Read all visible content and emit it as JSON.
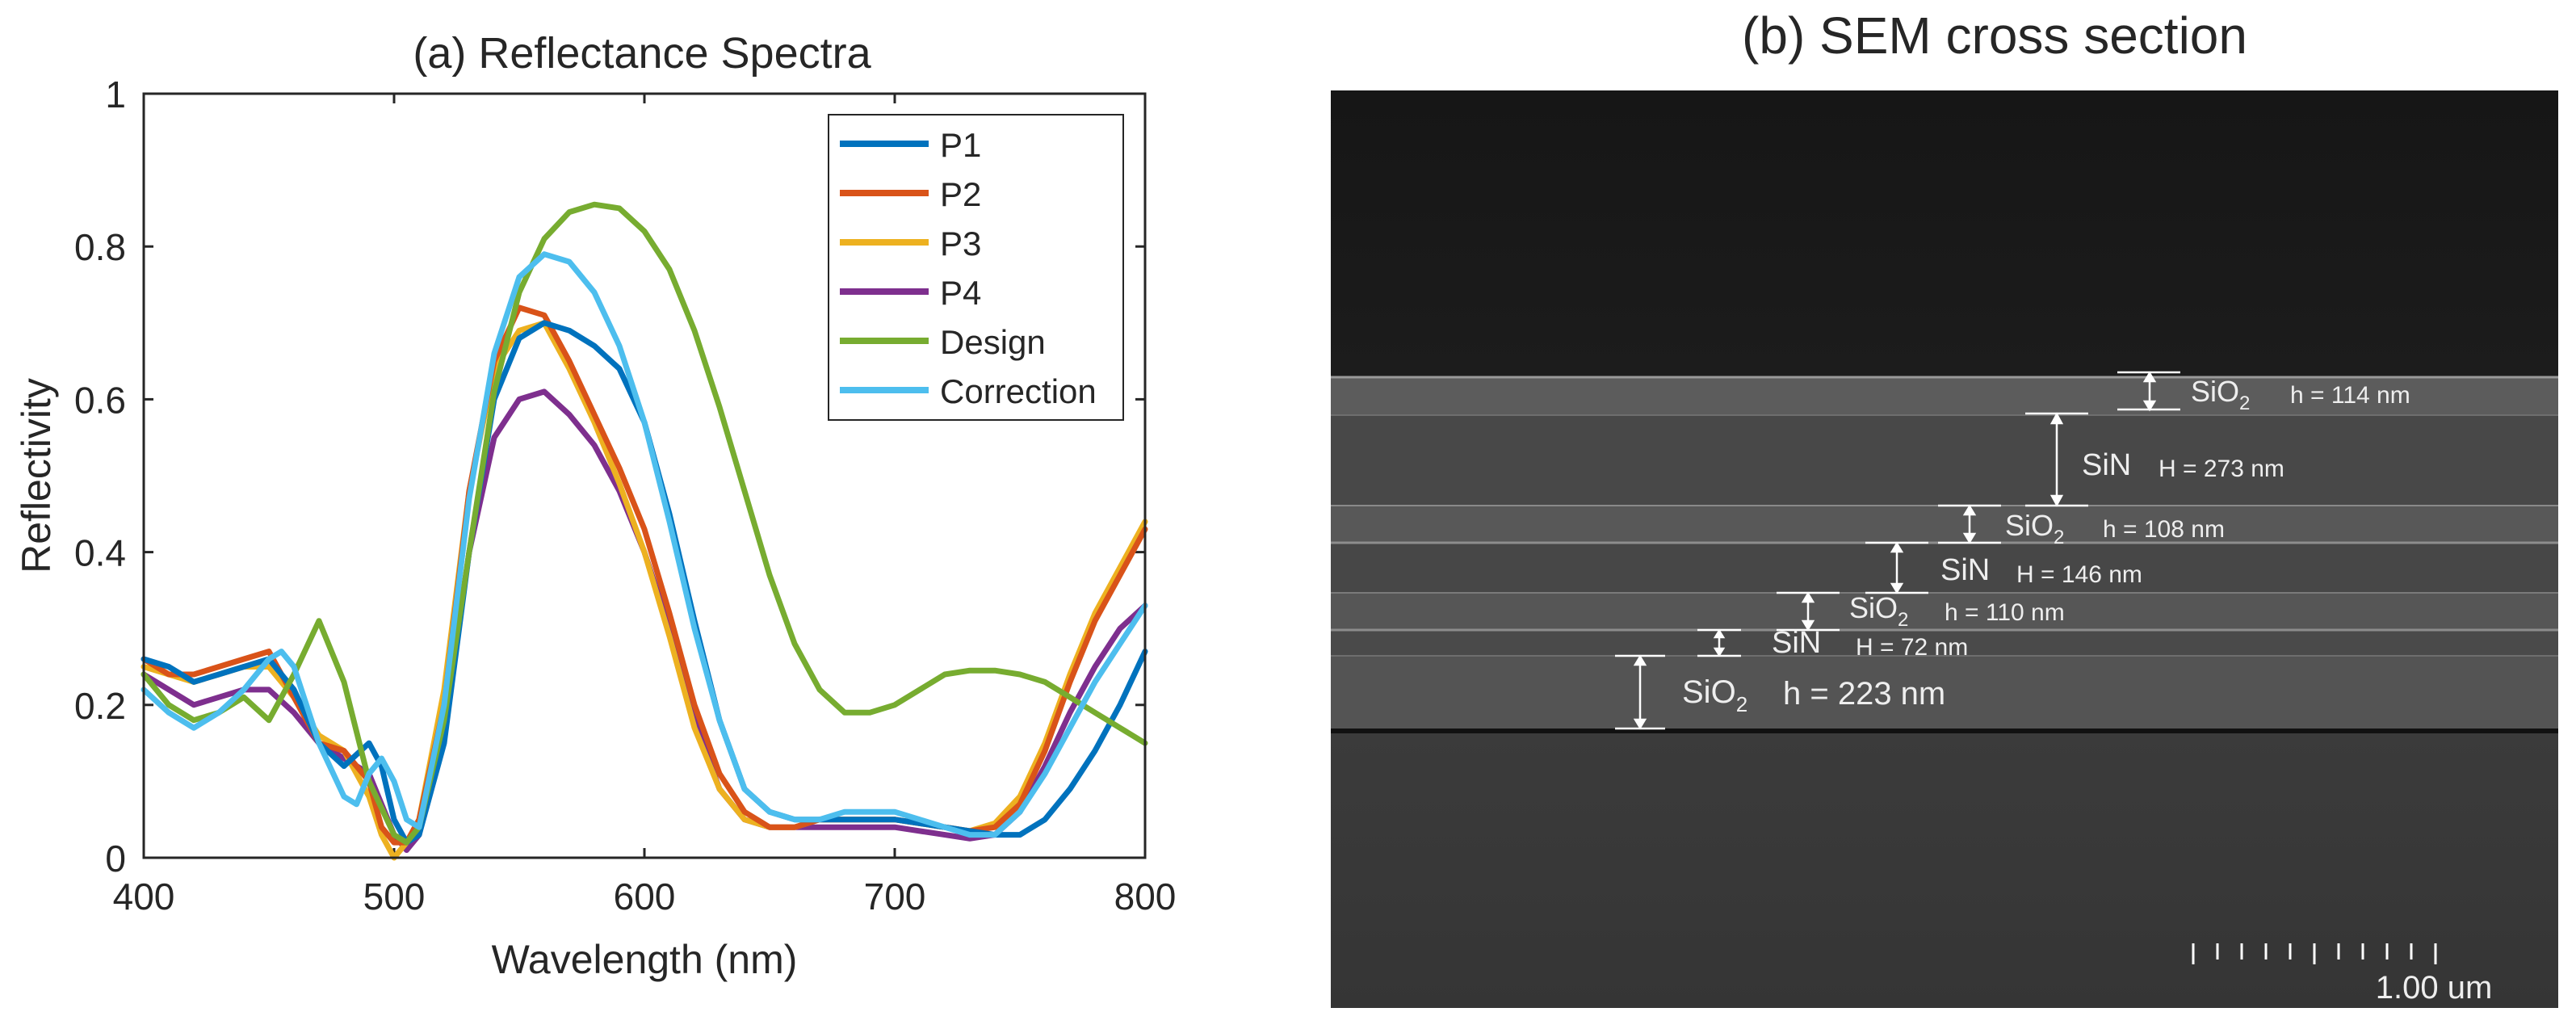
{
  "chart_data": {
    "type": "line",
    "title": "(a) Reflectance  Spectra",
    "xlabel": "Wavelength (nm)",
    "ylabel": "Reflectivity",
    "xlim": [
      400,
      800
    ],
    "ylim": [
      0,
      1
    ],
    "xticks": [
      "400",
      "500",
      "600",
      "700",
      "800"
    ],
    "yticks": [
      "0",
      "0.2",
      "0.4",
      "0.6",
      "0.8",
      "1"
    ],
    "legend_position": "top-right",
    "series": [
      {
        "name": "P1",
        "color": "#0072BD",
        "x": [
          400,
          410,
          420,
          430,
          440,
          450,
          460,
          470,
          480,
          490,
          495,
          500,
          505,
          510,
          520,
          530,
          540,
          550,
          560,
          570,
          580,
          590,
          600,
          610,
          620,
          630,
          640,
          650,
          660,
          670,
          680,
          690,
          700,
          710,
          720,
          730,
          740,
          750,
          760,
          770,
          780,
          790,
          800
        ],
        "y": [
          0.26,
          0.25,
          0.23,
          0.24,
          0.25,
          0.26,
          0.22,
          0.15,
          0.12,
          0.15,
          0.12,
          0.05,
          0.02,
          0.03,
          0.15,
          0.4,
          0.6,
          0.68,
          0.7,
          0.69,
          0.67,
          0.64,
          0.57,
          0.45,
          0.31,
          0.18,
          0.09,
          0.06,
          0.05,
          0.05,
          0.05,
          0.05,
          0.05,
          0.045,
          0.04,
          0.035,
          0.03,
          0.03,
          0.05,
          0.09,
          0.14,
          0.2,
          0.27
        ]
      },
      {
        "name": "P2",
        "color": "#D95319",
        "x": [
          400,
          410,
          420,
          430,
          440,
          450,
          460,
          470,
          480,
          490,
          495,
          500,
          505,
          510,
          520,
          530,
          540,
          550,
          560,
          570,
          580,
          590,
          600,
          610,
          620,
          630,
          640,
          650,
          660,
          670,
          680,
          690,
          700,
          710,
          720,
          730,
          740,
          750,
          760,
          770,
          780,
          790,
          800
        ],
        "y": [
          0.26,
          0.24,
          0.24,
          0.25,
          0.26,
          0.27,
          0.21,
          0.15,
          0.14,
          0.1,
          0.04,
          0.02,
          0.02,
          0.05,
          0.2,
          0.48,
          0.65,
          0.72,
          0.71,
          0.65,
          0.58,
          0.51,
          0.43,
          0.32,
          0.2,
          0.11,
          0.06,
          0.04,
          0.04,
          0.05,
          0.05,
          0.05,
          0.05,
          0.045,
          0.04,
          0.035,
          0.04,
          0.07,
          0.14,
          0.23,
          0.31,
          0.37,
          0.43
        ]
      },
      {
        "name": "P3",
        "color": "#EDB120",
        "x": [
          400,
          410,
          420,
          430,
          440,
          450,
          460,
          470,
          480,
          490,
          495,
          500,
          505,
          510,
          520,
          530,
          540,
          550,
          560,
          570,
          580,
          590,
          600,
          610,
          620,
          630,
          640,
          650,
          660,
          670,
          680,
          690,
          700,
          710,
          720,
          730,
          740,
          750,
          760,
          770,
          780,
          790,
          800
        ],
        "y": [
          0.25,
          0.24,
          0.23,
          0.24,
          0.25,
          0.25,
          0.21,
          0.16,
          0.14,
          0.08,
          0.03,
          0.0,
          0.02,
          0.05,
          0.22,
          0.48,
          0.64,
          0.69,
          0.7,
          0.64,
          0.57,
          0.49,
          0.4,
          0.29,
          0.17,
          0.09,
          0.05,
          0.04,
          0.04,
          0.05,
          0.05,
          0.05,
          0.05,
          0.045,
          0.04,
          0.035,
          0.045,
          0.08,
          0.15,
          0.24,
          0.32,
          0.38,
          0.44
        ]
      },
      {
        "name": "P4",
        "color": "#7E2F8E",
        "x": [
          400,
          410,
          420,
          430,
          440,
          450,
          460,
          470,
          480,
          490,
          495,
          500,
          505,
          510,
          520,
          530,
          540,
          550,
          560,
          570,
          580,
          590,
          600,
          610,
          620,
          630,
          640,
          650,
          660,
          670,
          680,
          690,
          700,
          710,
          720,
          730,
          740,
          750,
          760,
          770,
          780,
          790,
          800
        ],
        "y": [
          0.24,
          0.22,
          0.2,
          0.21,
          0.22,
          0.22,
          0.19,
          0.15,
          0.13,
          0.11,
          0.07,
          0.03,
          0.01,
          0.03,
          0.17,
          0.4,
          0.55,
          0.6,
          0.61,
          0.58,
          0.54,
          0.48,
          0.4,
          0.3,
          0.18,
          0.09,
          0.05,
          0.04,
          0.04,
          0.04,
          0.04,
          0.04,
          0.04,
          0.035,
          0.03,
          0.025,
          0.03,
          0.06,
          0.12,
          0.19,
          0.25,
          0.3,
          0.33
        ]
      },
      {
        "name": "Design",
        "color": "#77AC30",
        "x": [
          400,
          410,
          420,
          430,
          440,
          450,
          460,
          470,
          480,
          490,
          500,
          505,
          510,
          520,
          530,
          540,
          550,
          560,
          570,
          580,
          590,
          600,
          610,
          620,
          630,
          640,
          650,
          660,
          670,
          680,
          690,
          700,
          710,
          720,
          730,
          740,
          750,
          760,
          770,
          780,
          790,
          800
        ],
        "y": [
          0.24,
          0.2,
          0.18,
          0.19,
          0.21,
          0.18,
          0.24,
          0.31,
          0.23,
          0.1,
          0.03,
          0.02,
          0.04,
          0.18,
          0.4,
          0.61,
          0.74,
          0.81,
          0.845,
          0.855,
          0.85,
          0.82,
          0.77,
          0.69,
          0.59,
          0.48,
          0.37,
          0.28,
          0.22,
          0.19,
          0.19,
          0.2,
          0.22,
          0.24,
          0.245,
          0.245,
          0.24,
          0.23,
          0.21,
          0.19,
          0.17,
          0.15
        ]
      },
      {
        "name": "Correction",
        "color": "#4DBEEE",
        "x": [
          400,
          410,
          420,
          430,
          440,
          450,
          455,
          460,
          470,
          480,
          485,
          490,
          495,
          500,
          505,
          510,
          520,
          530,
          540,
          550,
          560,
          570,
          580,
          590,
          600,
          610,
          620,
          630,
          640,
          650,
          660,
          670,
          680,
          690,
          700,
          710,
          720,
          730,
          740,
          750,
          760,
          770,
          780,
          790,
          800
        ],
        "y": [
          0.22,
          0.19,
          0.17,
          0.19,
          0.22,
          0.26,
          0.27,
          0.25,
          0.15,
          0.08,
          0.07,
          0.11,
          0.13,
          0.1,
          0.05,
          0.04,
          0.2,
          0.47,
          0.66,
          0.76,
          0.79,
          0.78,
          0.74,
          0.67,
          0.57,
          0.44,
          0.3,
          0.18,
          0.09,
          0.06,
          0.05,
          0.05,
          0.06,
          0.06,
          0.06,
          0.05,
          0.04,
          0.03,
          0.03,
          0.06,
          0.11,
          0.17,
          0.23,
          0.28,
          0.33
        ]
      }
    ]
  },
  "sem_panel": {
    "title": "(b) SEM cross section",
    "scale_bar_label": "1.00 um",
    "layers": [
      {
        "material": "SiO",
        "subscript": "2",
        "thickness": "h = 114 nm"
      },
      {
        "material": "SiN",
        "subscript": "",
        "thickness": "H = 273 nm"
      },
      {
        "material": "SiO",
        "subscript": "2",
        "thickness": "h = 108 nm"
      },
      {
        "material": "SiN",
        "subscript": "",
        "thickness": "H = 146 nm"
      },
      {
        "material": "SiO",
        "subscript": "2",
        "thickness": "h = 110 nm"
      },
      {
        "material": "SiN",
        "subscript": "",
        "thickness": "H = 72 nm"
      },
      {
        "material": "SiO",
        "subscript": "2",
        "thickness": "h = 223 nm"
      }
    ]
  }
}
